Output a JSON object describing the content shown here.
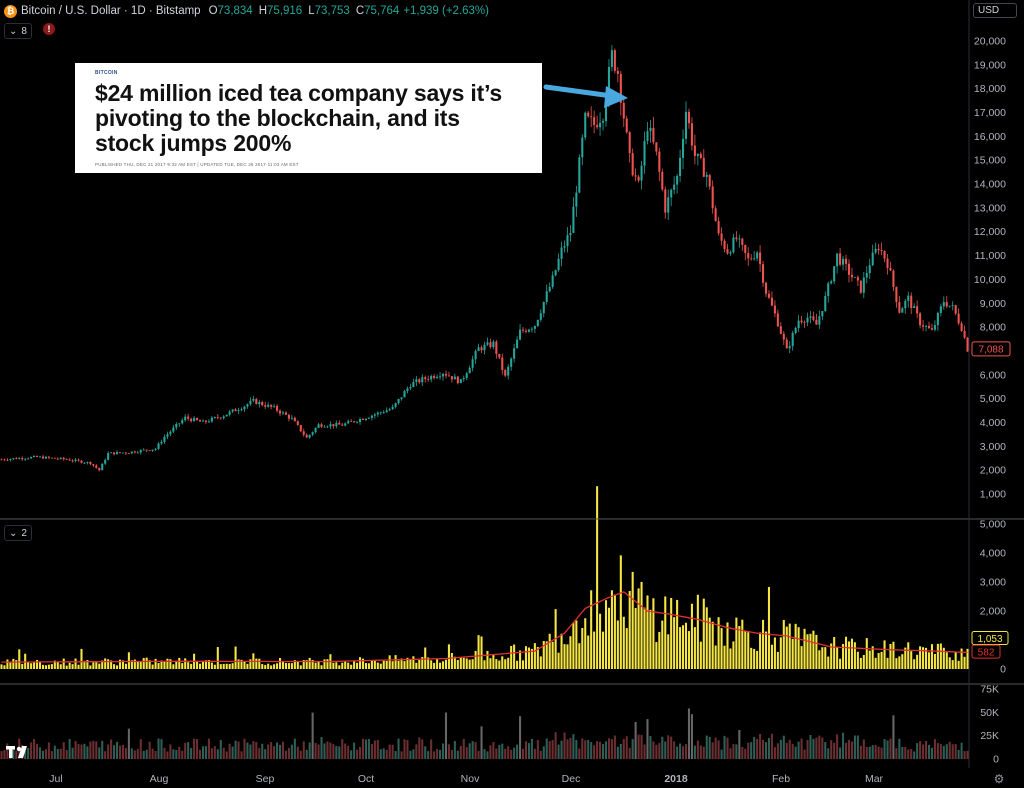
{
  "header": {
    "title": "Bitcoin / U.S. Dollar · 1D · Bitstamp",
    "coin_symbol": "₿",
    "open_key": "O",
    "open": "73,834",
    "high_key": "H",
    "high": "75,916",
    "low_key": "L",
    "low": "73,753",
    "close_key": "C",
    "close": "75,764",
    "change": "+1,939 (+2.63%)"
  },
  "indicator_chip_main": "8",
  "indicator_chip_volume": "2",
  "currency": "USD",
  "news": {
    "tag": "BITCOIN",
    "headline": "$24 million iced tea company says it’s pivoting to the blockchain, and its stock jumps 200%",
    "meta": "PUBLISHED THU, DEC 21 2017·9:32 AM EST | UPDATED TUE, DEC 26 2017·11:03 AM EST"
  },
  "colors": {
    "up": "#26a69a",
    "down": "#ef5350",
    "volume": "#f5e642",
    "ma": "#e03030",
    "arrow": "#4aa8e0",
    "bg": "#000000"
  },
  "chart_data": {
    "type": "candlestick",
    "x_labels": [
      "Jul",
      "Aug",
      "Sep",
      "Oct",
      "Nov",
      "Dec",
      "2018",
      "Feb",
      "Mar"
    ],
    "y_axis_labels": [
      "1,000",
      "2,000",
      "3,000",
      "4,000",
      "5,000",
      "6,000",
      "7,000",
      "8,000",
      "9,000",
      "10,000",
      "11,000",
      "12,000",
      "13,000",
      "14,000",
      "15,000",
      "16,000",
      "17,000",
      "18,000",
      "19,000",
      "20,000"
    ],
    "ylim": [
      0,
      20700
    ],
    "last_price_label": "7,088",
    "start_date": "2017-06-14",
    "price_anchors": [
      [
        0,
        2450
      ],
      [
        12,
        2550
      ],
      [
        22,
        2450
      ],
      [
        30,
        2300
      ],
      [
        33,
        2000
      ],
      [
        36,
        2700
      ],
      [
        43,
        2750
      ],
      [
        52,
        2900
      ],
      [
        55,
        3400
      ],
      [
        62,
        4200
      ],
      [
        68,
        4000
      ],
      [
        75,
        4300
      ],
      [
        82,
        4700
      ],
      [
        85,
        4900
      ],
      [
        92,
        4600
      ],
      [
        98,
        4150
      ],
      [
        103,
        3350
      ],
      [
        107,
        3900
      ],
      [
        115,
        3900
      ],
      [
        125,
        4300
      ],
      [
        132,
        4600
      ],
      [
        138,
        5600
      ],
      [
        142,
        5800
      ],
      [
        149,
        6100
      ],
      [
        155,
        5700
      ],
      [
        161,
        7100
      ],
      [
        166,
        7300
      ],
      [
        170,
        5900
      ],
      [
        175,
        7800
      ],
      [
        180,
        8100
      ],
      [
        186,
        10000
      ],
      [
        189,
        11200
      ],
      [
        192,
        12000
      ],
      [
        197,
        16700
      ],
      [
        200,
        16500
      ],
      [
        203,
        17000
      ],
      [
        206,
        19400
      ],
      [
        208,
        18700
      ],
      [
        212,
        15000
      ],
      [
        215,
        13900
      ],
      [
        218,
        16500
      ],
      [
        221,
        15200
      ],
      [
        224,
        13000
      ],
      [
        228,
        14300
      ],
      [
        231,
        17100
      ],
      [
        234,
        15200
      ],
      [
        238,
        14400
      ],
      [
        242,
        11800
      ],
      [
        245,
        11200
      ],
      [
        248,
        11700
      ],
      [
        252,
        10800
      ],
      [
        255,
        11200
      ],
      [
        258,
        9500
      ],
      [
        262,
        8200
      ],
      [
        265,
        7000
      ],
      [
        269,
        8300
      ],
      [
        272,
        8400
      ],
      [
        275,
        8100
      ],
      [
        278,
        9200
      ],
      [
        282,
        11000
      ],
      [
        286,
        10300
      ],
      [
        290,
        9600
      ],
      [
        293,
        10700
      ],
      [
        296,
        11400
      ],
      [
        299,
        10700
      ],
      [
        303,
        8700
      ],
      [
        306,
        9200
      ],
      [
        310,
        8200
      ],
      [
        314,
        7800
      ],
      [
        318,
        9100
      ],
      [
        321,
        8800
      ],
      [
        324,
        8000
      ],
      [
        326,
        7100
      ]
    ],
    "volume": {
      "y_axis_labels": [
        "0",
        "1,000",
        "2,000",
        "3,000",
        "4,000",
        "5,000"
      ],
      "ylim": [
        0,
        5000
      ],
      "last_label": "1,053",
      "ma_label": "582",
      "anchors": [
        [
          0,
          250
        ],
        [
          60,
          280
        ],
        [
          110,
          270
        ],
        [
          150,
          380
        ],
        [
          180,
          650
        ],
        [
          190,
          1300
        ],
        [
          197,
          2200
        ],
        [
          205,
          2600
        ],
        [
          210,
          2800
        ],
        [
          218,
          2100
        ],
        [
          225,
          2000
        ],
        [
          235,
          1800
        ],
        [
          245,
          1500
        ],
        [
          255,
          1300
        ],
        [
          265,
          1200
        ],
        [
          280,
          800
        ],
        [
          300,
          700
        ],
        [
          315,
          650
        ],
        [
          326,
          600
        ]
      ]
    },
    "third_pane": {
      "y_axis_labels": [
        "0",
        "25K",
        "50K",
        "75K"
      ],
      "ylim": [
        0,
        75000
      ]
    }
  }
}
